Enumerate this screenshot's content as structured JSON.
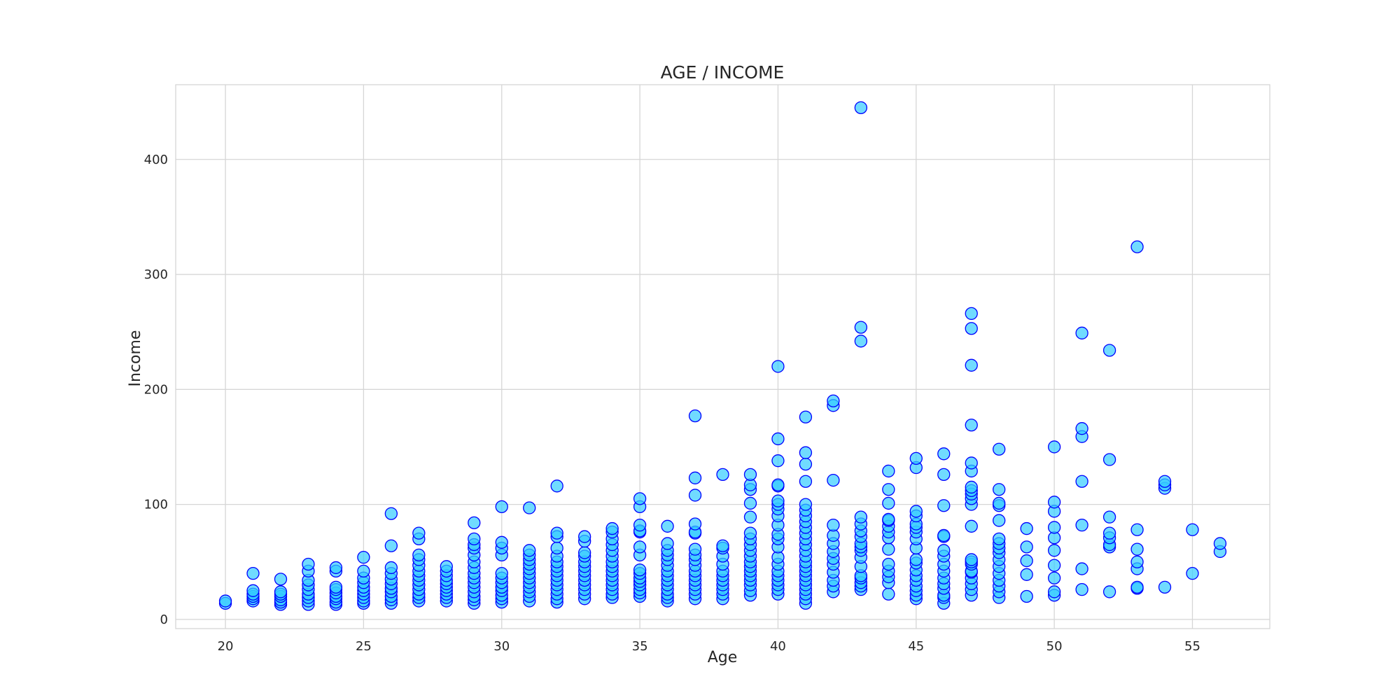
{
  "chart_data": {
    "type": "scatter",
    "title": "AGE / INCOME",
    "xlabel": "Age",
    "ylabel": "Income",
    "xlim": [
      18.2,
      57.8
    ],
    "ylim": [
      -8,
      465
    ],
    "xticks": [
      20,
      25,
      30,
      35,
      40,
      45,
      50,
      55
    ],
    "yticks": [
      0,
      100,
      200,
      300,
      400
    ],
    "grid": true,
    "colors": {
      "marker_fill": "#33ccff",
      "marker_edge": "#0000ff",
      "grid": "#d6d6d6",
      "text": "#262626"
    },
    "points": [
      [
        20,
        14
      ],
      [
        20,
        16
      ],
      [
        21,
        16
      ],
      [
        21,
        18
      ],
      [
        21,
        20
      ],
      [
        21,
        22
      ],
      [
        21,
        25
      ],
      [
        21,
        40
      ],
      [
        22,
        13
      ],
      [
        22,
        15
      ],
      [
        22,
        17
      ],
      [
        22,
        20
      ],
      [
        22,
        22
      ],
      [
        22,
        24
      ],
      [
        22,
        35
      ],
      [
        23,
        13
      ],
      [
        23,
        16
      ],
      [
        23,
        19
      ],
      [
        23,
        22
      ],
      [
        23,
        26
      ],
      [
        23,
        30
      ],
      [
        23,
        34
      ],
      [
        23,
        42
      ],
      [
        23,
        48
      ],
      [
        24,
        13
      ],
      [
        24,
        15
      ],
      [
        24,
        18
      ],
      [
        24,
        20
      ],
      [
        24,
        23
      ],
      [
        24,
        26
      ],
      [
        24,
        28
      ],
      [
        24,
        42
      ],
      [
        24,
        45
      ],
      [
        25,
        14
      ],
      [
        25,
        16
      ],
      [
        25,
        19
      ],
      [
        25,
        22
      ],
      [
        25,
        25
      ],
      [
        25,
        28
      ],
      [
        25,
        32
      ],
      [
        25,
        36
      ],
      [
        25,
        42
      ],
      [
        25,
        54
      ],
      [
        26,
        14
      ],
      [
        26,
        17
      ],
      [
        26,
        20
      ],
      [
        26,
        24
      ],
      [
        26,
        27
      ],
      [
        26,
        31
      ],
      [
        26,
        35
      ],
      [
        26,
        40
      ],
      [
        26,
        45
      ],
      [
        26,
        64
      ],
      [
        26,
        92
      ],
      [
        27,
        16
      ],
      [
        27,
        19
      ],
      [
        27,
        22
      ],
      [
        27,
        26
      ],
      [
        27,
        30
      ],
      [
        27,
        34
      ],
      [
        27,
        38
      ],
      [
        27,
        42
      ],
      [
        27,
        47
      ],
      [
        27,
        52
      ],
      [
        27,
        56
      ],
      [
        27,
        70
      ],
      [
        27,
        75
      ],
      [
        28,
        16
      ],
      [
        28,
        19
      ],
      [
        28,
        22
      ],
      [
        28,
        25
      ],
      [
        28,
        28
      ],
      [
        28,
        31
      ],
      [
        28,
        34
      ],
      [
        28,
        38
      ],
      [
        28,
        42
      ],
      [
        28,
        46
      ],
      [
        29,
        14
      ],
      [
        29,
        17
      ],
      [
        29,
        20
      ],
      [
        29,
        24
      ],
      [
        29,
        28
      ],
      [
        29,
        32
      ],
      [
        29,
        36
      ],
      [
        29,
        40
      ],
      [
        29,
        45
      ],
      [
        29,
        50
      ],
      [
        29,
        56
      ],
      [
        29,
        62
      ],
      [
        29,
        65
      ],
      [
        29,
        70
      ],
      [
        29,
        84
      ],
      [
        30,
        15
      ],
      [
        30,
        18
      ],
      [
        30,
        21
      ],
      [
        30,
        25
      ],
      [
        30,
        28
      ],
      [
        30,
        32
      ],
      [
        30,
        36
      ],
      [
        30,
        40
      ],
      [
        30,
        56
      ],
      [
        30,
        62
      ],
      [
        30,
        67
      ],
      [
        30,
        98
      ],
      [
        31,
        16
      ],
      [
        31,
        20
      ],
      [
        31,
        24
      ],
      [
        31,
        28
      ],
      [
        31,
        32
      ],
      [
        31,
        36
      ],
      [
        31,
        40
      ],
      [
        31,
        44
      ],
      [
        31,
        48
      ],
      [
        31,
        52
      ],
      [
        31,
        56
      ],
      [
        31,
        60
      ],
      [
        31,
        97
      ],
      [
        32,
        15
      ],
      [
        32,
        18
      ],
      [
        32,
        22
      ],
      [
        32,
        26
      ],
      [
        32,
        30
      ],
      [
        32,
        34
      ],
      [
        32,
        38
      ],
      [
        32,
        42
      ],
      [
        32,
        46
      ],
      [
        32,
        50
      ],
      [
        32,
        55
      ],
      [
        32,
        62
      ],
      [
        32,
        72
      ],
      [
        32,
        75
      ],
      [
        32,
        116
      ],
      [
        33,
        18
      ],
      [
        33,
        22
      ],
      [
        33,
        26
      ],
      [
        33,
        30
      ],
      [
        33,
        34
      ],
      [
        33,
        38
      ],
      [
        33,
        42
      ],
      [
        33,
        46
      ],
      [
        33,
        50
      ],
      [
        33,
        55
      ],
      [
        33,
        58
      ],
      [
        33,
        68
      ],
      [
        33,
        72
      ],
      [
        34,
        19
      ],
      [
        34,
        22
      ],
      [
        34,
        26
      ],
      [
        34,
        30
      ],
      [
        34,
        34
      ],
      [
        34,
        38
      ],
      [
        34,
        42
      ],
      [
        34,
        46
      ],
      [
        34,
        50
      ],
      [
        34,
        55
      ],
      [
        34,
        60
      ],
      [
        34,
        65
      ],
      [
        34,
        70
      ],
      [
        34,
        76
      ],
      [
        34,
        79
      ],
      [
        35,
        20
      ],
      [
        35,
        23
      ],
      [
        35,
        26
      ],
      [
        35,
        30
      ],
      [
        35,
        33
      ],
      [
        35,
        36
      ],
      [
        35,
        40
      ],
      [
        35,
        43
      ],
      [
        35,
        56
      ],
      [
        35,
        63
      ],
      [
        35,
        76
      ],
      [
        35,
        77
      ],
      [
        35,
        82
      ],
      [
        35,
        98
      ],
      [
        35,
        105
      ],
      [
        36,
        16
      ],
      [
        36,
        19
      ],
      [
        36,
        22
      ],
      [
        36,
        26
      ],
      [
        36,
        30
      ],
      [
        36,
        34
      ],
      [
        36,
        38
      ],
      [
        36,
        42
      ],
      [
        36,
        47
      ],
      [
        36,
        52
      ],
      [
        36,
        56
      ],
      [
        36,
        60
      ],
      [
        36,
        66
      ],
      [
        36,
        81
      ],
      [
        37,
        18
      ],
      [
        37,
        22
      ],
      [
        37,
        26
      ],
      [
        37,
        30
      ],
      [
        37,
        34
      ],
      [
        37,
        38
      ],
      [
        37,
        42
      ],
      [
        37,
        47
      ],
      [
        37,
        52
      ],
      [
        37,
        56
      ],
      [
        37,
        61
      ],
      [
        37,
        75
      ],
      [
        37,
        76
      ],
      [
        37,
        83
      ],
      [
        37,
        108
      ],
      [
        37,
        123
      ],
      [
        37,
        177
      ],
      [
        38,
        18
      ],
      [
        38,
        22
      ],
      [
        38,
        26
      ],
      [
        38,
        30
      ],
      [
        38,
        34
      ],
      [
        38,
        38
      ],
      [
        38,
        42
      ],
      [
        38,
        48
      ],
      [
        38,
        55
      ],
      [
        38,
        62
      ],
      [
        38,
        64
      ],
      [
        38,
        126
      ],
      [
        39,
        21
      ],
      [
        39,
        25
      ],
      [
        39,
        30
      ],
      [
        39,
        34
      ],
      [
        39,
        38
      ],
      [
        39,
        42
      ],
      [
        39,
        46
      ],
      [
        39,
        50
      ],
      [
        39,
        55
      ],
      [
        39,
        60
      ],
      [
        39,
        65
      ],
      [
        39,
        70
      ],
      [
        39,
        75
      ],
      [
        39,
        89
      ],
      [
        39,
        101
      ],
      [
        39,
        113
      ],
      [
        39,
        117
      ],
      [
        39,
        126
      ],
      [
        40,
        22
      ],
      [
        40,
        26
      ],
      [
        40,
        30
      ],
      [
        40,
        34
      ],
      [
        40,
        38
      ],
      [
        40,
        42
      ],
      [
        40,
        48
      ],
      [
        40,
        54
      ],
      [
        40,
        63
      ],
      [
        40,
        70
      ],
      [
        40,
        74
      ],
      [
        40,
        82
      ],
      [
        40,
        90
      ],
      [
        40,
        96
      ],
      [
        40,
        100
      ],
      [
        40,
        103
      ],
      [
        40,
        116
      ],
      [
        40,
        117
      ],
      [
        40,
        138
      ],
      [
        40,
        157
      ],
      [
        40,
        220
      ],
      [
        41,
        14
      ],
      [
        41,
        18
      ],
      [
        41,
        22
      ],
      [
        41,
        26
      ],
      [
        41,
        30
      ],
      [
        41,
        34
      ],
      [
        41,
        38
      ],
      [
        41,
        42
      ],
      [
        41,
        46
      ],
      [
        41,
        50
      ],
      [
        41,
        55
      ],
      [
        41,
        60
      ],
      [
        41,
        65
      ],
      [
        41,
        70
      ],
      [
        41,
        75
      ],
      [
        41,
        80
      ],
      [
        41,
        85
      ],
      [
        41,
        90
      ],
      [
        41,
        95
      ],
      [
        41,
        100
      ],
      [
        41,
        120
      ],
      [
        41,
        135
      ],
      [
        41,
        145
      ],
      [
        41,
        176
      ],
      [
        42,
        24
      ],
      [
        42,
        29
      ],
      [
        42,
        34
      ],
      [
        42,
        41
      ],
      [
        42,
        48
      ],
      [
        42,
        53
      ],
      [
        42,
        59
      ],
      [
        42,
        66
      ],
      [
        42,
        73
      ],
      [
        42,
        82
      ],
      [
        42,
        121
      ],
      [
        42,
        186
      ],
      [
        42,
        190
      ],
      [
        43,
        26
      ],
      [
        43,
        29
      ],
      [
        43,
        32
      ],
      [
        43,
        36
      ],
      [
        43,
        38
      ],
      [
        43,
        46
      ],
      [
        43,
        54
      ],
      [
        43,
        60
      ],
      [
        43,
        63
      ],
      [
        43,
        66
      ],
      [
        43,
        72
      ],
      [
        43,
        77
      ],
      [
        43,
        83
      ],
      [
        43,
        89
      ],
      [
        43,
        242
      ],
      [
        43,
        254
      ],
      [
        43,
        445
      ],
      [
        44,
        22
      ],
      [
        44,
        32
      ],
      [
        44,
        37
      ],
      [
        44,
        42
      ],
      [
        44,
        48
      ],
      [
        44,
        61
      ],
      [
        44,
        71
      ],
      [
        44,
        76
      ],
      [
        44,
        81
      ],
      [
        44,
        86
      ],
      [
        44,
        87
      ],
      [
        44,
        101
      ],
      [
        44,
        113
      ],
      [
        44,
        129
      ],
      [
        45,
        18
      ],
      [
        45,
        21
      ],
      [
        45,
        25
      ],
      [
        45,
        29
      ],
      [
        45,
        34
      ],
      [
        45,
        38
      ],
      [
        45,
        43
      ],
      [
        45,
        49
      ],
      [
        45,
        52
      ],
      [
        45,
        62
      ],
      [
        45,
        70
      ],
      [
        45,
        76
      ],
      [
        45,
        80
      ],
      [
        45,
        83
      ],
      [
        45,
        90
      ],
      [
        45,
        94
      ],
      [
        45,
        132
      ],
      [
        45,
        140
      ],
      [
        46,
        14
      ],
      [
        46,
        19
      ],
      [
        46,
        21
      ],
      [
        46,
        27
      ],
      [
        46,
        31
      ],
      [
        46,
        36
      ],
      [
        46,
        42
      ],
      [
        46,
        48
      ],
      [
        46,
        55
      ],
      [
        46,
        60
      ],
      [
        46,
        72
      ],
      [
        46,
        73
      ],
      [
        46,
        99
      ],
      [
        46,
        126
      ],
      [
        46,
        144
      ],
      [
        47,
        21
      ],
      [
        47,
        26
      ],
      [
        47,
        31
      ],
      [
        47,
        36
      ],
      [
        47,
        41
      ],
      [
        47,
        42
      ],
      [
        47,
        48
      ],
      [
        47,
        50
      ],
      [
        47,
        52
      ],
      [
        47,
        81
      ],
      [
        47,
        100
      ],
      [
        47,
        105
      ],
      [
        47,
        109
      ],
      [
        47,
        112
      ],
      [
        47,
        115
      ],
      [
        47,
        129
      ],
      [
        47,
        136
      ],
      [
        47,
        169
      ],
      [
        47,
        221
      ],
      [
        47,
        253
      ],
      [
        47,
        266
      ],
      [
        48,
        19
      ],
      [
        48,
        24
      ],
      [
        48,
        29
      ],
      [
        48,
        34
      ],
      [
        48,
        40
      ],
      [
        48,
        46
      ],
      [
        48,
        52
      ],
      [
        48,
        58
      ],
      [
        48,
        62
      ],
      [
        48,
        66
      ],
      [
        48,
        70
      ],
      [
        48,
        86
      ],
      [
        48,
        99
      ],
      [
        48,
        101
      ],
      [
        48,
        113
      ],
      [
        48,
        148
      ],
      [
        49,
        20
      ],
      [
        49,
        39
      ],
      [
        49,
        51
      ],
      [
        49,
        63
      ],
      [
        49,
        79
      ],
      [
        50,
        21
      ],
      [
        50,
        24
      ],
      [
        50,
        36
      ],
      [
        50,
        47
      ],
      [
        50,
        60
      ],
      [
        50,
        71
      ],
      [
        50,
        80
      ],
      [
        50,
        94
      ],
      [
        50,
        102
      ],
      [
        50,
        150
      ],
      [
        51,
        26
      ],
      [
        51,
        44
      ],
      [
        51,
        82
      ],
      [
        51,
        120
      ],
      [
        51,
        159
      ],
      [
        51,
        166
      ],
      [
        51,
        249
      ],
      [
        52,
        24
      ],
      [
        52,
        63
      ],
      [
        52,
        65
      ],
      [
        52,
        71
      ],
      [
        52,
        75
      ],
      [
        52,
        89
      ],
      [
        52,
        139
      ],
      [
        52,
        234
      ],
      [
        53,
        27
      ],
      [
        53,
        28
      ],
      [
        53,
        44
      ],
      [
        53,
        50
      ],
      [
        53,
        61
      ],
      [
        53,
        78
      ],
      [
        53,
        324
      ],
      [
        54,
        28
      ],
      [
        54,
        114
      ],
      [
        54,
        117
      ],
      [
        54,
        120
      ],
      [
        55,
        40
      ],
      [
        55,
        78
      ],
      [
        56,
        59
      ],
      [
        56,
        66
      ]
    ]
  }
}
